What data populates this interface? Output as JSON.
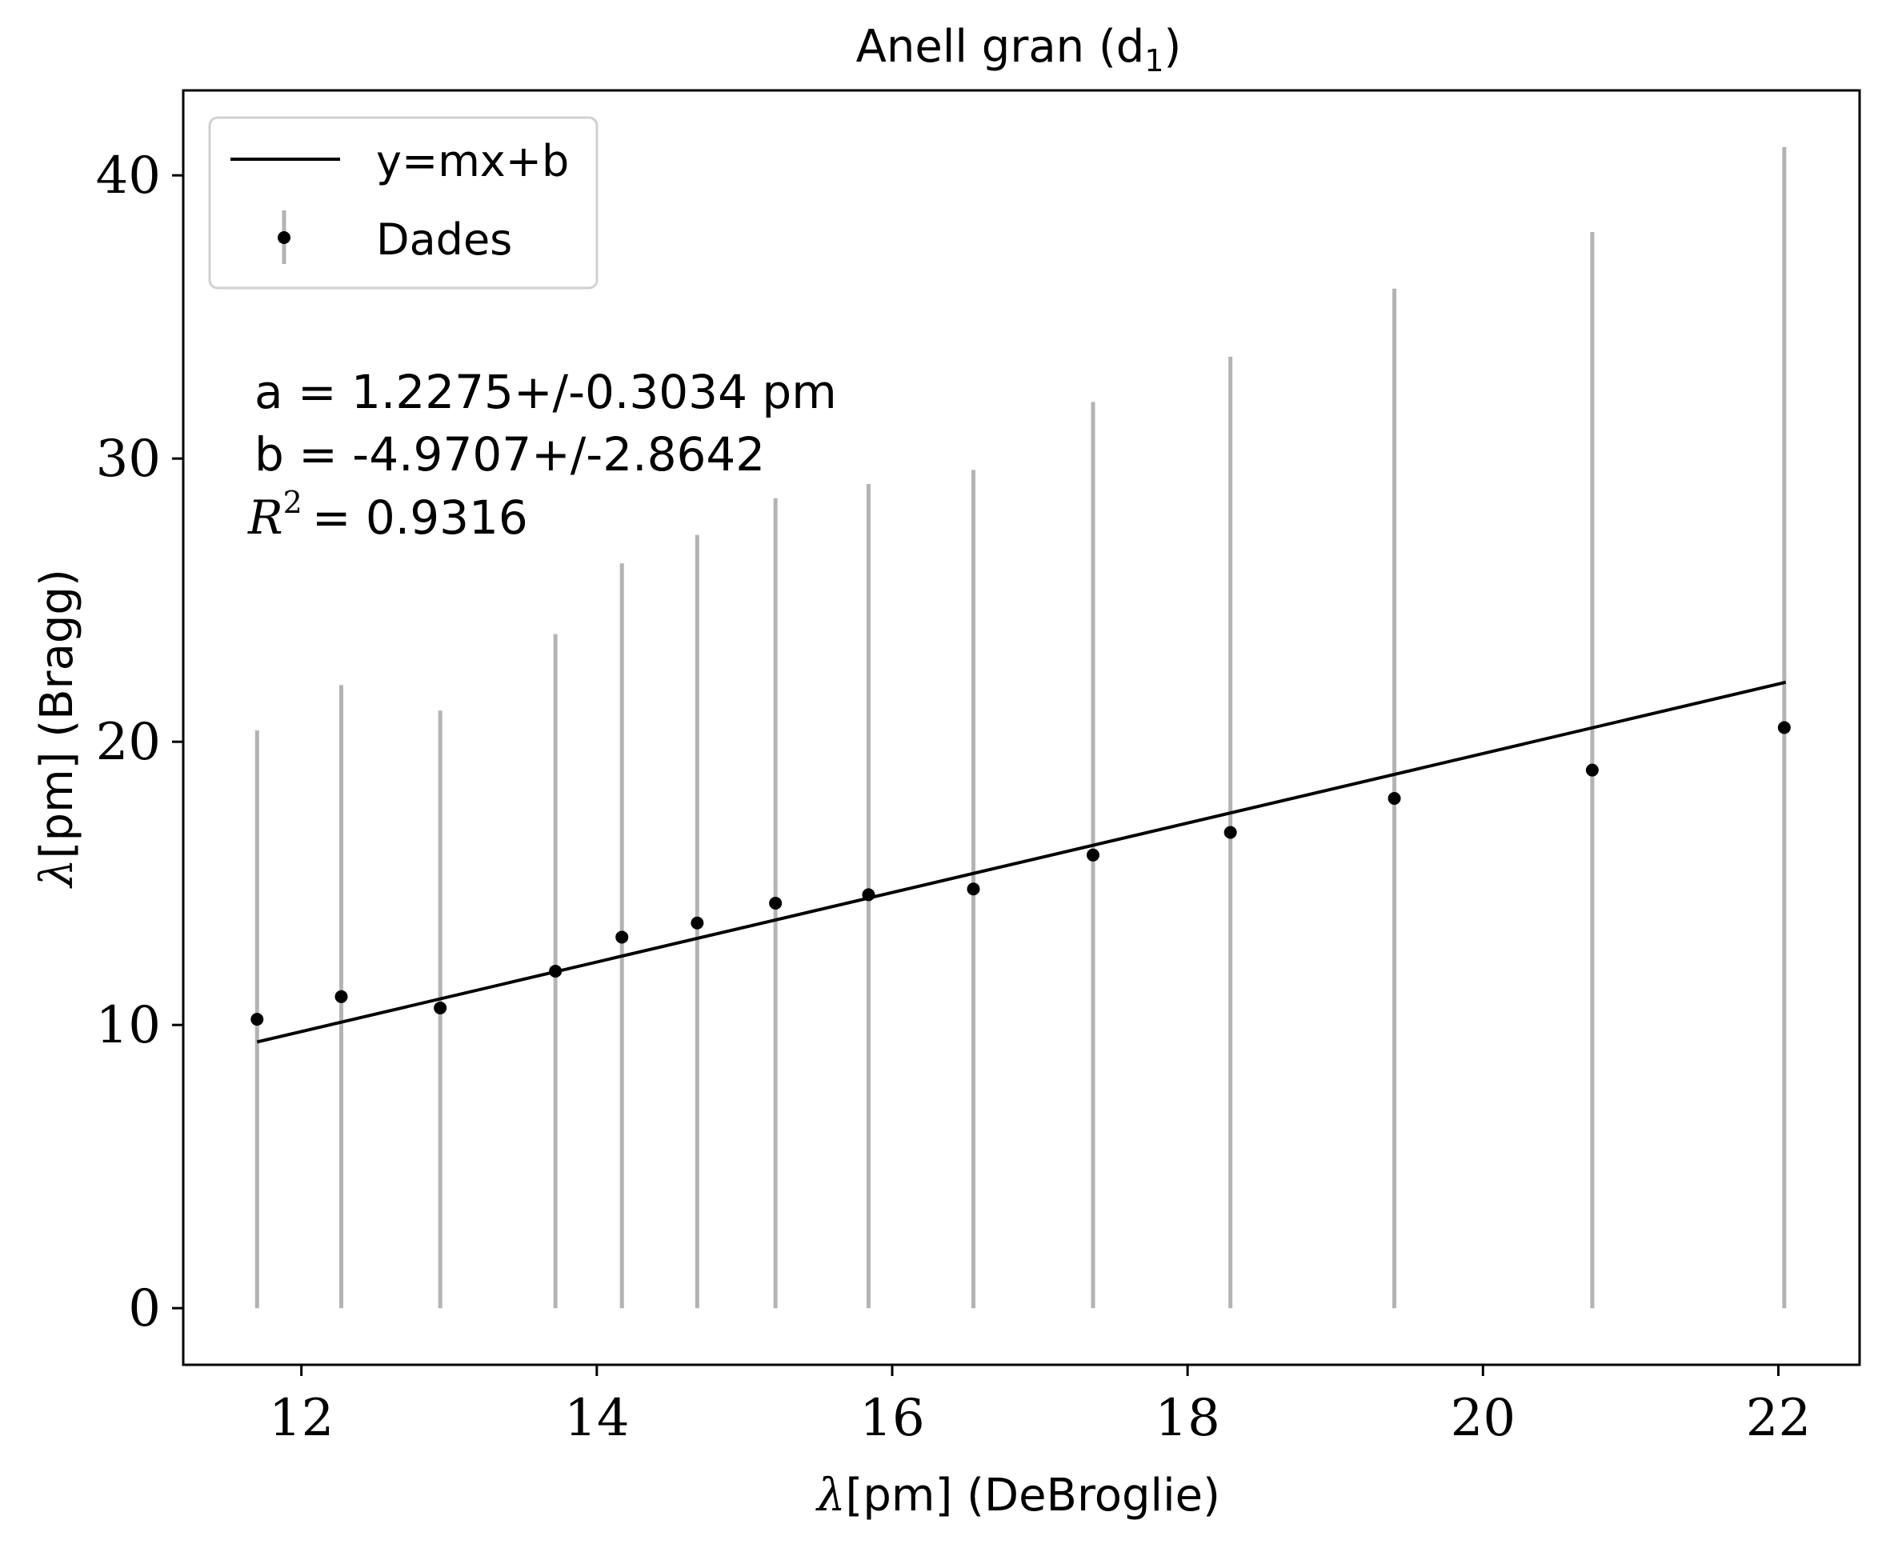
{
  "chart_data": {
    "type": "scatter",
    "title": "Anell gran (d",
    "title_subscript": "1",
    "title_suffix": ")",
    "xlabel_symbol": "λ",
    "xlabel": "[pm] (DeBroglie)",
    "ylabel_symbol": "λ",
    "ylabel": "[pm] (Bragg)",
    "xlim": [
      11.2,
      22.55
    ],
    "ylim": [
      -2.0,
      43.0
    ],
    "xticks": [
      12,
      14,
      16,
      18,
      20,
      22
    ],
    "yticks": [
      0,
      10,
      20,
      30,
      40
    ],
    "grid": false,
    "legend_position": "top-left",
    "legend": {
      "fit_label": "y=mx+b",
      "data_label": "Dades"
    },
    "annotations": {
      "a_line": "a = 1.2275+/-0.3034 pm",
      "b_line": "b = -4.9707+/-2.8642",
      "r2_symbol": "R",
      "r2_exp": "2",
      "r2_value": "= 0.9316"
    },
    "fit": {
      "x": [
        11.7,
        22.05
      ],
      "y": [
        9.4,
        22.1
      ]
    },
    "series": [
      {
        "name": "Dades",
        "x": [
          11.7,
          12.27,
          12.94,
          13.72,
          14.17,
          14.68,
          15.21,
          15.84,
          16.55,
          17.36,
          18.29,
          19.4,
          20.74,
          22.04
        ],
        "y": [
          10.2,
          11.0,
          10.6,
          11.9,
          13.1,
          13.6,
          14.3,
          14.6,
          14.8,
          16.0,
          16.8,
          18.0,
          19.0,
          20.5
        ],
        "yerr_low": [
          0,
          0,
          0,
          0,
          0,
          0,
          0,
          0,
          0,
          0,
          0,
          0,
          0,
          0
        ],
        "yerr_high": [
          20.4,
          22.0,
          21.1,
          23.8,
          26.3,
          27.3,
          28.6,
          29.1,
          29.6,
          32.0,
          33.6,
          36.0,
          38.0,
          41.0
        ]
      }
    ],
    "colors": {
      "errorbar": "#b3b3b3",
      "marker": "#000000",
      "fit_line": "#000000",
      "axes": "#000000",
      "legend_border": "#d0d0d0"
    }
  }
}
